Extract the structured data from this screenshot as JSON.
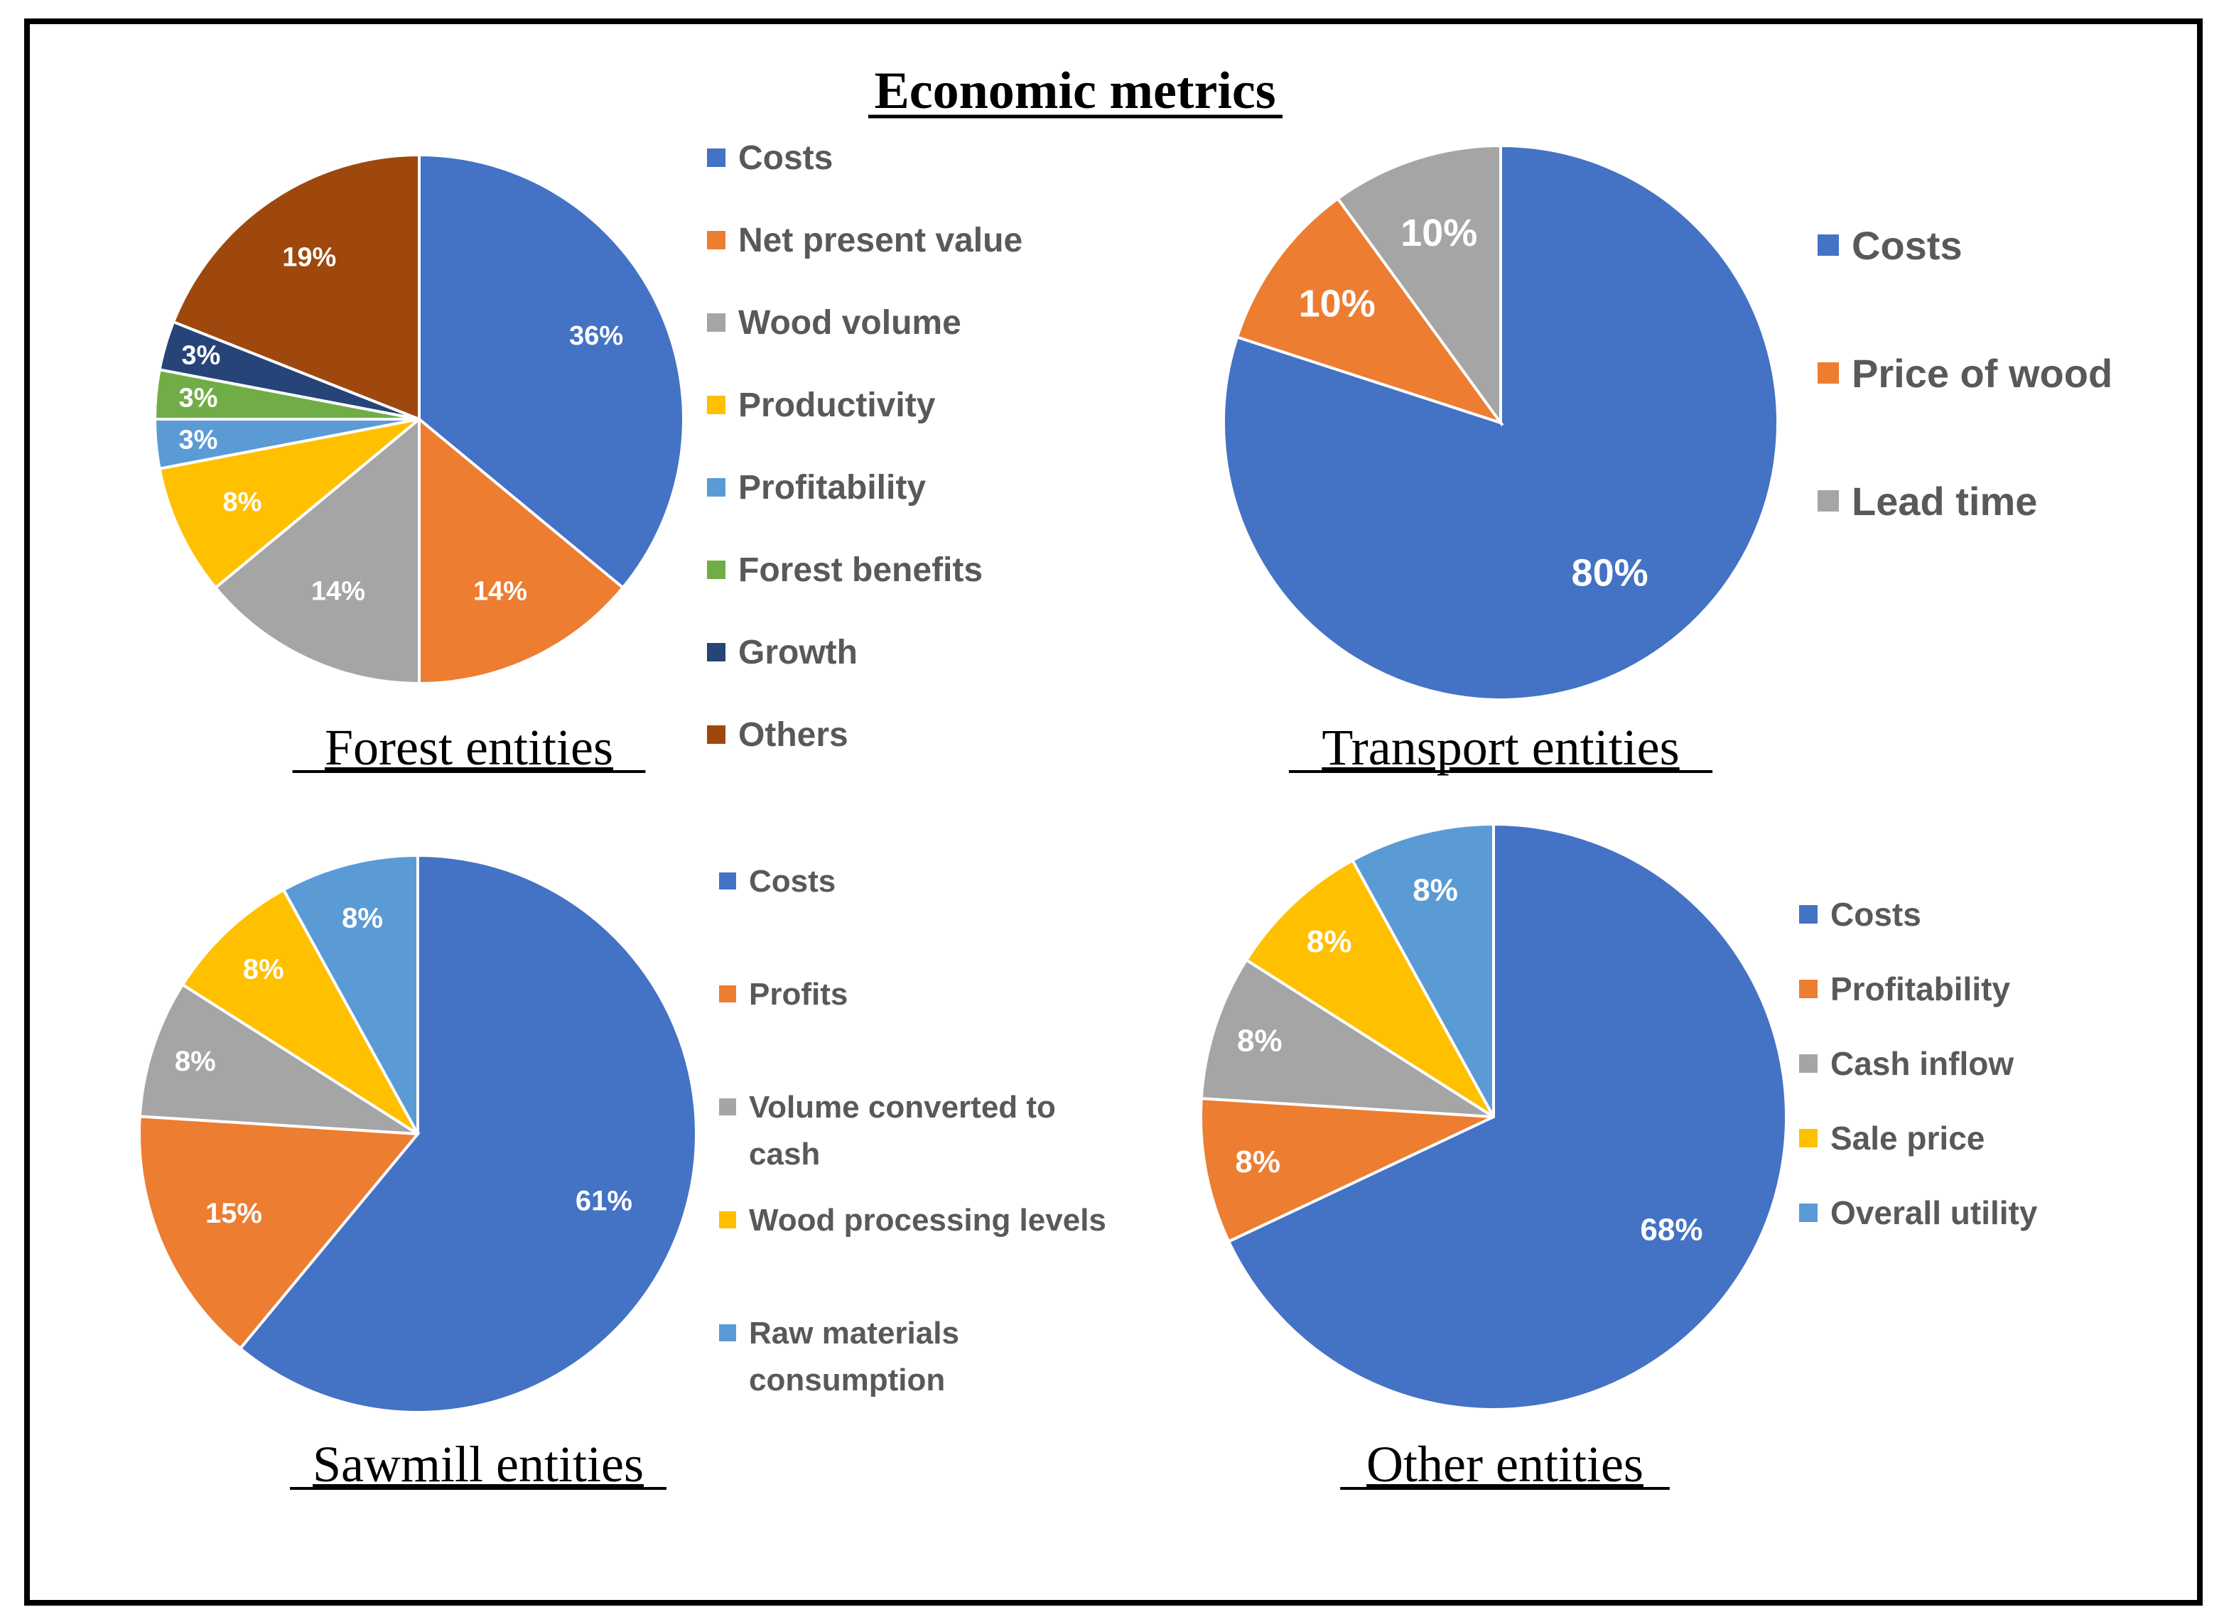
{
  "main_title": "Economic metrics",
  "chart_data": [
    {
      "type": "pie",
      "title": "Forest entities",
      "categories": [
        "Costs",
        "Net present value",
        "Wood volume",
        "Productivity",
        "Profitability",
        "Forest benefits",
        "Growth",
        "Others"
      ],
      "values": [
        36,
        14,
        14,
        8,
        3,
        3,
        3,
        19
      ],
      "labels": [
        "36%",
        "14%",
        "14%",
        "8%",
        "3%",
        "3%",
        "3%",
        "19%"
      ],
      "colors": [
        "#4472C4",
        "#ED7D31",
        "#A5A5A5",
        "#FFC000",
        "#5B9BD5",
        "#70AD47",
        "#264478",
        "#9E480E"
      ],
      "legend_position": "right"
    },
    {
      "type": "pie",
      "title": "Transport entities",
      "categories": [
        "Costs",
        "Price of wood",
        "Lead time"
      ],
      "values": [
        80,
        10,
        10
      ],
      "labels": [
        "80%",
        "10%",
        "10%"
      ],
      "colors": [
        "#4472C4",
        "#ED7D31",
        "#A5A5A5"
      ],
      "legend_position": "right"
    },
    {
      "type": "pie",
      "title": "Sawmill entities",
      "categories": [
        "Costs",
        "Profits",
        "Volume converted to cash",
        "Wood processing levels",
        "Raw materials consumption"
      ],
      "values": [
        61,
        15,
        8,
        8,
        8
      ],
      "labels": [
        "61%",
        "15%",
        "8%",
        "8%",
        "8%"
      ],
      "colors": [
        "#4472C4",
        "#ED7D31",
        "#A5A5A5",
        "#FFC000",
        "#5B9BD5"
      ],
      "legend_position": "right"
    },
    {
      "type": "pie",
      "title": "Other entities",
      "categories": [
        "Costs",
        "Profitability",
        "Cash inflow",
        "Sale price",
        "Overall utility"
      ],
      "values": [
        68,
        8,
        8,
        8,
        8
      ],
      "labels": [
        "68%",
        "8%",
        "8%",
        "8%",
        "8%"
      ],
      "colors": [
        "#4472C4",
        "#ED7D31",
        "#A5A5A5",
        "#FFC000",
        "#5B9BD5"
      ],
      "legend_position": "right"
    }
  ]
}
